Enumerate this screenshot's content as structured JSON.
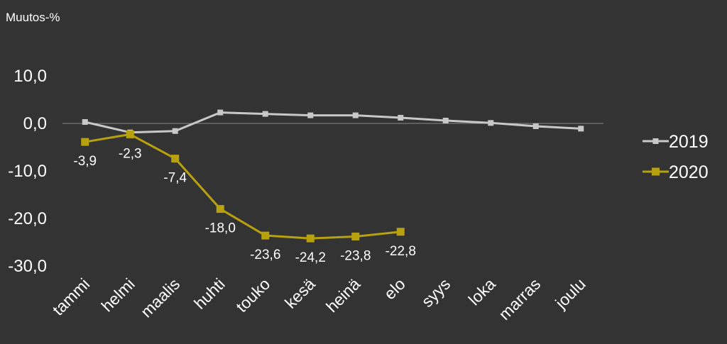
{
  "chart_data": {
    "type": "line",
    "ylabel": "Muutos-%",
    "categories": [
      "tammi",
      "helmi",
      "maalis",
      "huhti",
      "touko",
      "kesä",
      "heinä",
      "elo",
      "syys",
      "loka",
      "marras",
      "joulu"
    ],
    "series": [
      {
        "name": "2019",
        "color": "#c8c8c8",
        "values": [
          0.3,
          -1.9,
          -1.6,
          2.3,
          2.0,
          1.7,
          1.7,
          1.2,
          0.6,
          0.1,
          -0.6,
          -1.1
        ],
        "data_labels": null
      },
      {
        "name": "2020",
        "color": "#b8a10f",
        "values": [
          -3.9,
          -2.3,
          -7.4,
          -18.0,
          -23.6,
          -24.2,
          -23.8,
          -22.8,
          null,
          null,
          null,
          null
        ],
        "data_labels": [
          "-3,9",
          "-2,3",
          "-7,4",
          "-18,0",
          "-23,6",
          "-24,2",
          "-23,8",
          "-22,8",
          null,
          null,
          null,
          null
        ]
      }
    ],
    "y_ticks": [
      10,
      0,
      -10,
      -20,
      -30
    ],
    "y_tick_labels": [
      "10,0",
      "0,0",
      "-10,0",
      "-20,0",
      "-30,0"
    ],
    "ylim": [
      -30,
      10
    ],
    "grid": false,
    "legend_position": "right"
  }
}
